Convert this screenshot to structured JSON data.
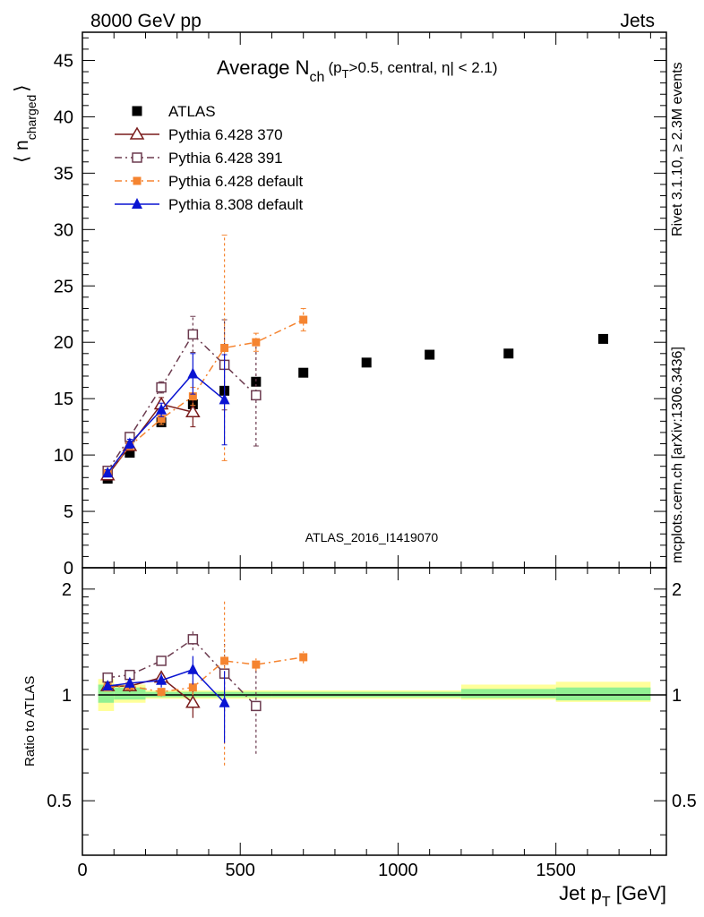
{
  "header": {
    "left": "8000 GeV pp",
    "right": "Jets"
  },
  "side_labels": {
    "rivet": "Rivet 3.1.10, ≥ 2.3M events",
    "mcplots": "mcplots.cern.ch [arXiv:1306.3436]"
  },
  "watermark": "ATLAS_2016_I1419070",
  "chart_data": {
    "type": "line",
    "title": "Average N_ch (p_T > 0.5, central, |η| < 2.1)",
    "title_parts": {
      "main": "Average N",
      "sub": "ch",
      "rest1": "(p",
      "sub2": "T",
      "rest2": ">0.5, central, η| < 2.1)"
    },
    "xlabel": "Jet p_T [GeV]",
    "xlabel_parts": {
      "main": "Jet p",
      "sub": "T",
      "rest": " [GeV]"
    },
    "ylabel": "⟨ n_charged ⟩",
    "ylabel_parts": {
      "left": "⟨ n",
      "sub": "charged",
      "right": "⟩"
    },
    "ratio_ylabel": "Ratio to ATLAS",
    "xlim": [
      0,
      1850
    ],
    "ylim": [
      0,
      47.5
    ],
    "ratio_ylim": [
      0.35,
      2.3
    ],
    "x_ticks": [
      0,
      500,
      1000,
      1500
    ],
    "y_ticks": [
      0,
      5,
      10,
      15,
      20,
      25,
      30,
      35,
      40,
      45
    ],
    "ratio_ticks": [
      0.5,
      1,
      2
    ],
    "legend_position": "top-left",
    "series": [
      {
        "name": "ATLAS",
        "color": "#000000",
        "marker": "filled-square",
        "x": [
          80,
          150,
          250,
          350,
          450,
          550,
          700,
          900,
          1100,
          1350,
          1650
        ],
        "y": [
          7.9,
          10.2,
          12.9,
          14.5,
          15.7,
          16.5,
          17.3,
          18.2,
          18.9,
          19.0,
          20.3
        ]
      },
      {
        "name": "Pythia 6.428 370",
        "color": "#7a1c1c",
        "marker": "open-triangle",
        "line": "solid",
        "x": [
          80,
          150,
          250,
          350
        ],
        "y": [
          8.2,
          10.8,
          14.5,
          13.8
        ],
        "yerr": [
          0.3,
          0.4,
          0.6,
          1.3
        ],
        "ratio": [
          1.06,
          1.06,
          1.12,
          0.95
        ],
        "ratio_err": [
          0.03,
          0.04,
          0.05,
          0.09
        ]
      },
      {
        "name": "Pythia 6.428 391",
        "color": "#6b3a4e",
        "marker": "open-square",
        "line": "dashdot",
        "x": [
          80,
          150,
          250,
          350,
          450,
          550
        ],
        "y": [
          8.6,
          11.6,
          16.0,
          20.7,
          18.0,
          15.3
        ],
        "yerr": [
          0.2,
          0.3,
          0.5,
          1.6,
          4.0,
          4.5
        ],
        "ratio": [
          1.12,
          1.14,
          1.25,
          1.44,
          1.15,
          0.93
        ],
        "ratio_err": [
          0.02,
          0.03,
          0.04,
          0.1,
          0.25,
          0.25
        ]
      },
      {
        "name": "Pythia 6.428 default",
        "color": "#f58430",
        "marker": "filled-square-small",
        "line": "dashdot",
        "x": [
          80,
          150,
          250,
          350,
          450,
          550,
          700
        ],
        "y": [
          8.4,
          10.8,
          13.2,
          15.2,
          19.5,
          20.0,
          22.0
        ],
        "yerr": [
          0.2,
          0.3,
          0.5,
          0.8,
          10.0,
          0.8,
          1.0
        ],
        "ratio": [
          1.05,
          1.06,
          1.02,
          1.05,
          1.25,
          1.22,
          1.28
        ],
        "ratio_err": [
          0.02,
          0.03,
          0.03,
          0.05,
          0.62,
          0.05,
          0.05
        ]
      },
      {
        "name": "Pythia 8.308 default",
        "color": "#0a14d2",
        "marker": "filled-triangle",
        "line": "solid",
        "x": [
          80,
          150,
          250,
          350,
          450
        ],
        "y": [
          8.4,
          11.0,
          14.0,
          17.2,
          14.9
        ],
        "yerr": [
          0.3,
          0.4,
          0.6,
          1.8,
          4.0
        ],
        "ratio": [
          1.06,
          1.08,
          1.1,
          1.18,
          0.95
        ],
        "ratio_err": [
          0.03,
          0.04,
          0.05,
          0.11,
          0.22
        ]
      }
    ],
    "uncertainty_bands": [
      {
        "x0": 50,
        "x1": 100,
        "green": [
          0.95,
          1.07
        ],
        "yellow": [
          0.9,
          1.11
        ]
      },
      {
        "x0": 100,
        "x1": 200,
        "green": [
          0.97,
          1.05
        ],
        "yellow": [
          0.95,
          1.07
        ]
      },
      {
        "x0": 200,
        "x1": 600,
        "green": [
          0.985,
          1.02
        ],
        "yellow": [
          0.975,
          1.03
        ]
      },
      {
        "x0": 600,
        "x1": 1200,
        "green": [
          0.985,
          1.02
        ],
        "yellow": [
          0.975,
          1.03
        ]
      },
      {
        "x0": 1200,
        "x1": 1500,
        "green": [
          0.98,
          1.04
        ],
        "yellow": [
          0.97,
          1.07
        ]
      },
      {
        "x0": 1500,
        "x1": 1800,
        "green": [
          0.965,
          1.05
        ],
        "yellow": [
          0.955,
          1.09
        ]
      }
    ]
  }
}
